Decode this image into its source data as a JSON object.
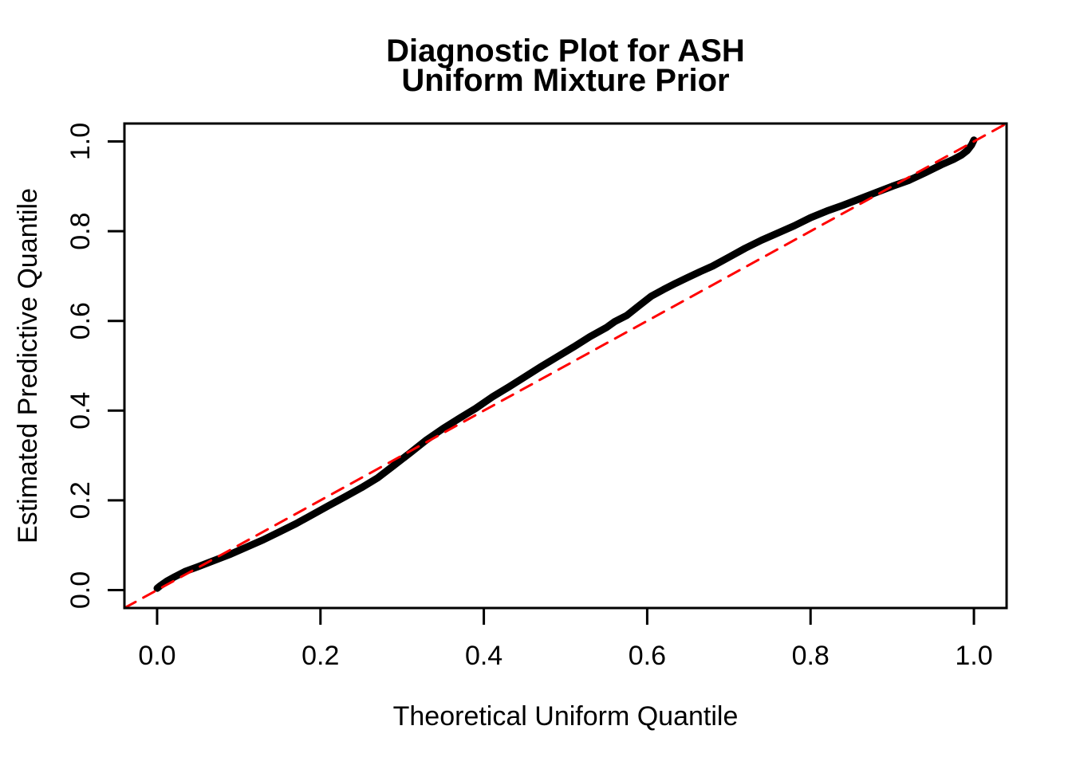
{
  "figure": {
    "title_line1": "Diagnostic Plot for ASH",
    "title_line2": "Uniform Mixture Prior",
    "xlabel": "Theoretical Uniform Quantile",
    "ylabel": "Estimated Predictive Quantile"
  },
  "colors": {
    "background": "#FFFFFF",
    "curve": "#000000",
    "reference_line": "#FF0000",
    "axis": "#000000",
    "text": "#000000"
  },
  "chart_data": {
    "type": "line",
    "title": "Diagnostic Plot for ASH\nUniform Mixture Prior",
    "title_lines": [
      "Diagnostic Plot for ASH",
      "Uniform Mixture Prior"
    ],
    "xlabel": "Theoretical Uniform Quantile",
    "ylabel": "Estimated Predictive Quantile",
    "xlim": [
      -0.04,
      1.04
    ],
    "ylim": [
      -0.04,
      1.04
    ],
    "x_ticks": [
      0.0,
      0.2,
      0.4,
      0.6,
      0.8,
      1.0
    ],
    "y_ticks": [
      0.0,
      0.2,
      0.4,
      0.6,
      0.8,
      1.0
    ],
    "x_tick_labels": [
      "0.0",
      "0.2",
      "0.4",
      "0.6",
      "0.8",
      "1.0"
    ],
    "y_tick_labels": [
      "0.0",
      "0.2",
      "0.4",
      "0.6",
      "0.8",
      "1.0"
    ],
    "grid": false,
    "legend": "none",
    "series": [
      {
        "name": "estimated_predictive_quantile_curve",
        "type": "line",
        "color": "#000000",
        "line_width": 9,
        "line_style": "solid",
        "points": [
          [
            0.0,
            0.004
          ],
          [
            0.004,
            0.01
          ],
          [
            0.012,
            0.02
          ],
          [
            0.022,
            0.03
          ],
          [
            0.035,
            0.042
          ],
          [
            0.05,
            0.052
          ],
          [
            0.07,
            0.066
          ],
          [
            0.09,
            0.08
          ],
          [
            0.11,
            0.096
          ],
          [
            0.13,
            0.112
          ],
          [
            0.15,
            0.13
          ],
          [
            0.17,
            0.148
          ],
          [
            0.19,
            0.168
          ],
          [
            0.21,
            0.188
          ],
          [
            0.23,
            0.208
          ],
          [
            0.25,
            0.228
          ],
          [
            0.27,
            0.25
          ],
          [
            0.29,
            0.278
          ],
          [
            0.31,
            0.306
          ],
          [
            0.33,
            0.335
          ],
          [
            0.35,
            0.36
          ],
          [
            0.37,
            0.383
          ],
          [
            0.39,
            0.405
          ],
          [
            0.41,
            0.43
          ],
          [
            0.43,
            0.452
          ],
          [
            0.45,
            0.475
          ],
          [
            0.47,
            0.498
          ],
          [
            0.49,
            0.52
          ],
          [
            0.51,
            0.542
          ],
          [
            0.53,
            0.565
          ],
          [
            0.55,
            0.585
          ],
          [
            0.56,
            0.598
          ],
          [
            0.575,
            0.612
          ],
          [
            0.59,
            0.634
          ],
          [
            0.605,
            0.655
          ],
          [
            0.62,
            0.67
          ],
          [
            0.635,
            0.684
          ],
          [
            0.65,
            0.697
          ],
          [
            0.665,
            0.71
          ],
          [
            0.68,
            0.722
          ],
          [
            0.7,
            0.742
          ],
          [
            0.72,
            0.762
          ],
          [
            0.74,
            0.78
          ],
          [
            0.76,
            0.796
          ],
          [
            0.78,
            0.812
          ],
          [
            0.8,
            0.83
          ],
          [
            0.82,
            0.845
          ],
          [
            0.84,
            0.858
          ],
          [
            0.86,
            0.872
          ],
          [
            0.88,
            0.886
          ],
          [
            0.9,
            0.9
          ],
          [
            0.92,
            0.913
          ],
          [
            0.94,
            0.93
          ],
          [
            0.96,
            0.948
          ],
          [
            0.975,
            0.96
          ],
          [
            0.985,
            0.97
          ],
          [
            0.992,
            0.98
          ],
          [
            0.997,
            0.992
          ],
          [
            1.0,
            1.003
          ]
        ]
      },
      {
        "name": "identity_reference_line",
        "type": "line",
        "color": "#FF0000",
        "line_width": 3,
        "line_style": "dashed",
        "dash_pattern": [
          16,
          11
        ],
        "points": [
          [
            -0.04,
            -0.04
          ],
          [
            1.04,
            1.04
          ]
        ]
      }
    ]
  }
}
